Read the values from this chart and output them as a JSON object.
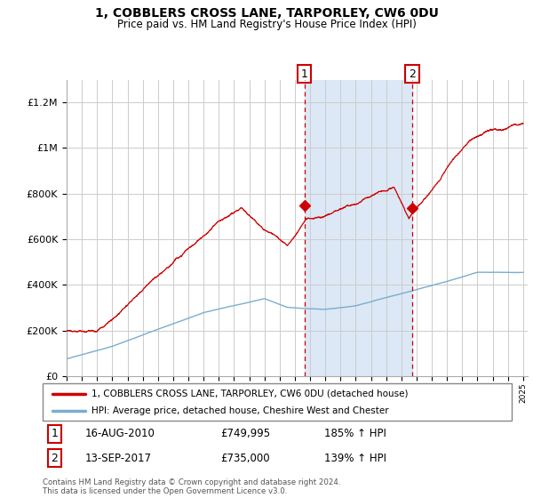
{
  "title": "1, COBBLERS CROSS LANE, TARPORLEY, CW6 0DU",
  "subtitle": "Price paid vs. HM Land Registry's House Price Index (HPI)",
  "legend_label_red": "1, COBBLERS CROSS LANE, TARPORLEY, CW6 0DU (detached house)",
  "legend_label_blue": "HPI: Average price, detached house, Cheshire West and Chester",
  "sale1_label": "1",
  "sale1_date": "16-AUG-2010",
  "sale1_price": "£749,995",
  "sale1_hpi": "185% ↑ HPI",
  "sale2_label": "2",
  "sale2_date": "13-SEP-2017",
  "sale2_price": "£735,000",
  "sale2_hpi": "139% ↑ HPI",
  "footer": "Contains HM Land Registry data © Crown copyright and database right 2024.\nThis data is licensed under the Open Government Licence v3.0.",
  "red_color": "#cc0000",
  "blue_color": "#7aadcf",
  "shade_color": "#dce8f5",
  "vline_color": "#cc0000",
  "ylim_max": 1300000,
  "sale1_year": 2010.625,
  "sale1_value": 749995,
  "sale2_year": 2017.708,
  "sale2_value": 735000
}
